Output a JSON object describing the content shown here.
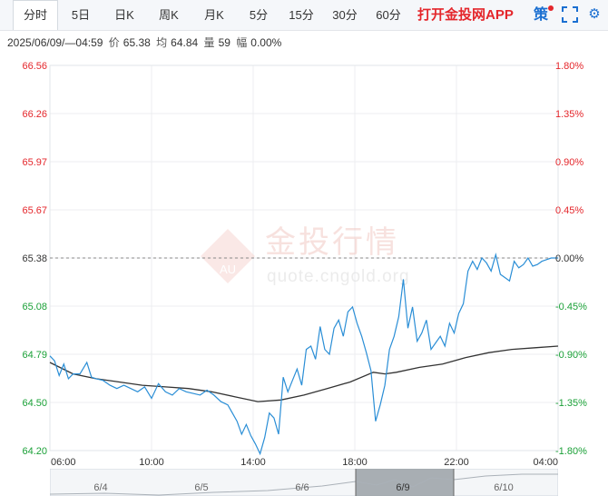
{
  "tabs": [
    {
      "label": "分时",
      "active": true
    },
    {
      "label": "5日",
      "active": false
    },
    {
      "label": "日K",
      "active": false
    },
    {
      "label": "周K",
      "active": false
    },
    {
      "label": "月K",
      "active": false
    },
    {
      "label": "5分",
      "active": false
    },
    {
      "label": "15分",
      "active": false
    },
    {
      "label": "30分",
      "active": false
    },
    {
      "label": "60分",
      "active": false
    }
  ],
  "promo_label": "打开金投网APP",
  "strategy_label": "策",
  "info": {
    "datetime": "2025/06/09/—04:59",
    "price_label": "价",
    "price": "65.38",
    "avg_label": "均",
    "avg": "64.84",
    "volume_label": "量",
    "volume": "59",
    "change_label": "幅",
    "change": "0.00%"
  },
  "watermark": {
    "brand": "金投行情",
    "url": "quote.cngold.org",
    "logo_text": "AU"
  },
  "navigator": {
    "labels": [
      "6/4",
      "6/5",
      "6/6",
      "6/9",
      "6/10"
    ]
  },
  "colors": {
    "price_line": "#2a8ed6",
    "avg_line": "#333333",
    "up": "#e4262b",
    "down": "#1aa037",
    "base_text": "#333333"
  },
  "chart_data": {
    "type": "line",
    "x_ticks": [
      "06:00",
      "10:00",
      "14:00",
      "18:00",
      "22:00",
      "04:00"
    ],
    "y_ticks": [
      "66.56",
      "66.26",
      "65.97",
      "65.67",
      "65.38",
      "65.08",
      "64.79",
      "64.50",
      "64.20"
    ],
    "y_pct_ticks": [
      "1.80%",
      "1.35%",
      "0.90%",
      "0.45%",
      "0.00%",
      "-0.45%",
      "-0.90%",
      "-1.35%",
      "-1.80%"
    ],
    "ylim": [
      64.2,
      66.56
    ],
    "base_price": 65.38,
    "time_range_hours": [
      0,
      22
    ],
    "series": [
      {
        "role": "price",
        "x": [
          0.0,
          0.2,
          0.4,
          0.6,
          0.8,
          1.0,
          1.3,
          1.6,
          1.8,
          2.0,
          2.3,
          2.6,
          2.9,
          3.2,
          3.5,
          3.8,
          4.1,
          4.4,
          4.7,
          5.0,
          5.3,
          5.6,
          5.9,
          6.2,
          6.5,
          6.8,
          7.1,
          7.4,
          7.7,
          7.9,
          8.1,
          8.3,
          8.5,
          8.7,
          8.9,
          9.1,
          9.3,
          9.5,
          9.7,
          9.9,
          10.1,
          10.3,
          10.5,
          10.7,
          10.9,
          11.1,
          11.3,
          11.5,
          11.7,
          11.9,
          12.1,
          12.3,
          12.5,
          12.7,
          12.9,
          13.1,
          13.3,
          13.5,
          13.7,
          13.9,
          14.1,
          14.3,
          14.5,
          14.7,
          14.9,
          15.1,
          15.3,
          15.5,
          15.7,
          15.9,
          16.1,
          16.3,
          16.5,
          16.7,
          16.9,
          17.1,
          17.3,
          17.5,
          17.7,
          17.9,
          18.1,
          18.3,
          18.5,
          18.7,
          18.9,
          19.1,
          19.3,
          19.5,
          19.7,
          19.9,
          20.1,
          20.3,
          20.5,
          20.7,
          20.9,
          21.1,
          21.3,
          21.5,
          21.7,
          21.9,
          22.0
        ],
        "values": [
          64.78,
          64.75,
          64.66,
          64.73,
          64.64,
          64.67,
          64.67,
          64.74,
          64.65,
          64.64,
          64.63,
          64.6,
          64.58,
          64.6,
          64.58,
          64.56,
          64.59,
          64.52,
          64.61,
          64.56,
          64.54,
          64.58,
          64.56,
          64.55,
          64.54,
          64.57,
          64.54,
          64.5,
          64.48,
          64.43,
          64.38,
          64.3,
          64.36,
          64.29,
          64.24,
          64.18,
          64.28,
          64.43,
          64.4,
          64.3,
          64.65,
          64.56,
          64.63,
          64.7,
          64.6,
          64.82,
          64.84,
          64.76,
          64.96,
          64.82,
          64.79,
          64.95,
          65.0,
          64.9,
          65.05,
          65.08,
          64.98,
          64.9,
          64.8,
          64.69,
          64.38,
          64.48,
          64.6,
          64.82,
          64.9,
          65.02,
          65.25,
          64.95,
          65.08,
          64.87,
          64.92,
          65.0,
          64.82,
          64.86,
          64.9,
          64.84,
          64.98,
          64.92,
          65.04,
          65.1,
          65.3,
          65.36,
          65.31,
          65.38,
          65.35,
          65.3,
          65.4,
          65.28,
          65.26,
          65.24,
          65.36,
          65.32,
          65.34,
          65.38,
          65.33,
          65.34,
          65.36,
          65.37,
          65.38,
          65.38,
          65.38
        ]
      },
      {
        "role": "average",
        "x": [
          0.0,
          1.0,
          2.0,
          3.0,
          4.0,
          5.0,
          6.0,
          7.0,
          8.0,
          9.0,
          10.0,
          11.0,
          12.0,
          13.0,
          14.0,
          14.5,
          15.0,
          16.0,
          17.0,
          18.0,
          19.0,
          20.0,
          21.0,
          22.0
        ],
        "values": [
          64.74,
          64.67,
          64.64,
          64.62,
          64.6,
          64.59,
          64.58,
          64.56,
          64.53,
          64.5,
          64.51,
          64.54,
          64.58,
          64.62,
          64.68,
          64.67,
          64.68,
          64.71,
          64.73,
          64.77,
          64.8,
          64.82,
          64.83,
          64.84
        ]
      }
    ]
  }
}
